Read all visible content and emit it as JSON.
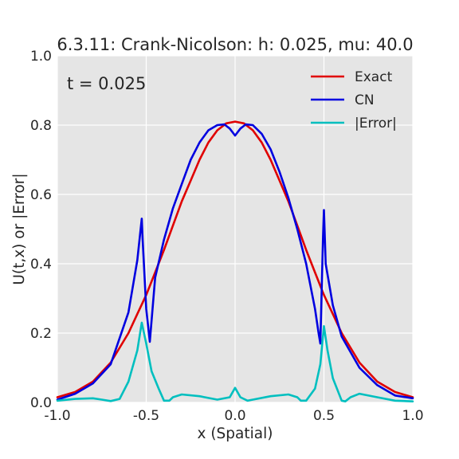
{
  "chart_data": {
    "type": "line",
    "title": "6.3.11: Crank-Nicolson: h: 0.025, mu: 40.0",
    "xlabel": "x (Spatial)",
    "ylabel": "U(t,x) or |Error|",
    "xlim": [
      -1.0,
      1.0
    ],
    "ylim": [
      0.0,
      1.0
    ],
    "xticks": [
      "-1.0",
      "-0.5",
      "0.0",
      "0.5",
      "1.0"
    ],
    "yticks": [
      "0.0",
      "0.2",
      "0.4",
      "0.6",
      "0.8",
      "1.0"
    ],
    "annotation": "t = 0.025",
    "grid": true,
    "legend_position": "top-right",
    "series": [
      {
        "name": "Exact",
        "color": "#e00000",
        "x": [
          -1.0,
          -0.9,
          -0.8,
          -0.7,
          -0.6,
          -0.55,
          -0.5,
          -0.45,
          -0.4,
          -0.35,
          -0.3,
          -0.25,
          -0.2,
          -0.15,
          -0.1,
          -0.05,
          0.0,
          0.05,
          0.1,
          0.15,
          0.2,
          0.25,
          0.3,
          0.35,
          0.4,
          0.45,
          0.5,
          0.55,
          0.6,
          0.7,
          0.8,
          0.9,
          1.0
        ],
        "values": [
          0.015,
          0.03,
          0.06,
          0.115,
          0.2,
          0.255,
          0.31,
          0.375,
          0.44,
          0.51,
          0.58,
          0.64,
          0.7,
          0.75,
          0.785,
          0.805,
          0.81,
          0.805,
          0.785,
          0.75,
          0.7,
          0.64,
          0.58,
          0.51,
          0.44,
          0.375,
          0.31,
          0.255,
          0.2,
          0.115,
          0.06,
          0.03,
          0.015
        ]
      },
      {
        "name": "CN",
        "color": "#0000e0",
        "x": [
          -1.0,
          -0.9,
          -0.8,
          -0.7,
          -0.6,
          -0.55,
          -0.525,
          -0.52,
          -0.5,
          -0.48,
          -0.45,
          -0.4,
          -0.35,
          -0.3,
          -0.25,
          -0.2,
          -0.15,
          -0.1,
          -0.06,
          -0.03,
          0.0,
          0.03,
          0.06,
          0.1,
          0.15,
          0.2,
          0.25,
          0.3,
          0.35,
          0.4,
          0.45,
          0.47,
          0.48,
          0.495,
          0.5,
          0.51,
          0.55,
          0.6,
          0.7,
          0.8,
          0.9,
          1.0
        ],
        "values": [
          0.008,
          0.025,
          0.055,
          0.11,
          0.26,
          0.41,
          0.53,
          0.47,
          0.27,
          0.175,
          0.36,
          0.47,
          0.56,
          0.63,
          0.7,
          0.75,
          0.785,
          0.8,
          0.802,
          0.79,
          0.77,
          0.79,
          0.802,
          0.8,
          0.775,
          0.73,
          0.665,
          0.59,
          0.5,
          0.4,
          0.27,
          0.2,
          0.17,
          0.48,
          0.555,
          0.4,
          0.28,
          0.19,
          0.1,
          0.05,
          0.02,
          0.012
        ]
      },
      {
        "name": "|Error|",
        "color": "#00bfbf",
        "x": [
          -1.0,
          -0.9,
          -0.8,
          -0.75,
          -0.7,
          -0.65,
          -0.6,
          -0.55,
          -0.525,
          -0.5,
          -0.47,
          -0.43,
          -0.4,
          -0.37,
          -0.35,
          -0.3,
          -0.2,
          -0.1,
          -0.03,
          0.0,
          0.03,
          0.07,
          0.1,
          0.2,
          0.3,
          0.35,
          0.37,
          0.4,
          0.45,
          0.48,
          0.5,
          0.52,
          0.55,
          0.6,
          0.62,
          0.65,
          0.7,
          0.8,
          0.9,
          1.0
        ],
        "values": [
          0.005,
          0.01,
          0.012,
          0.008,
          0.004,
          0.01,
          0.06,
          0.15,
          0.23,
          0.17,
          0.09,
          0.04,
          0.005,
          0.005,
          0.015,
          0.023,
          0.018,
          0.008,
          0.015,
          0.042,
          0.015,
          0.005,
          0.008,
          0.018,
          0.023,
          0.015,
          0.005,
          0.005,
          0.04,
          0.11,
          0.22,
          0.15,
          0.07,
          0.005,
          0.003,
          0.015,
          0.025,
          0.015,
          0.005,
          0.003
        ]
      }
    ]
  }
}
